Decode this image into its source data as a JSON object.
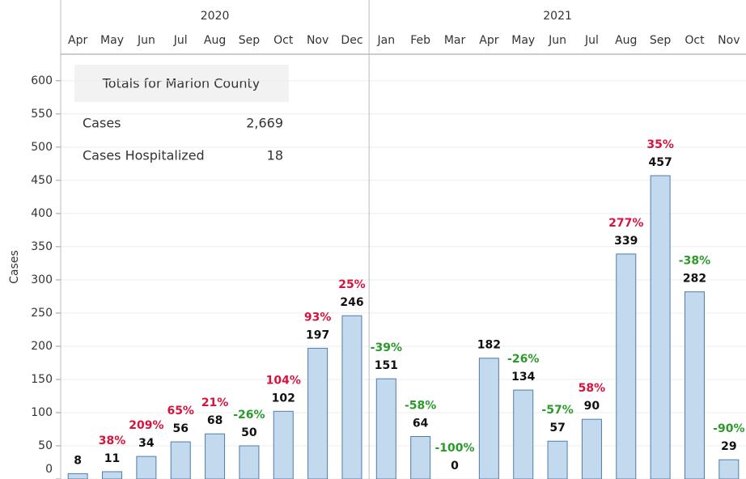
{
  "chart_data": {
    "type": "bar",
    "y_label": "Cases",
    "ylim": [
      0,
      640
    ],
    "yticks": [
      0,
      50,
      100,
      150,
      200,
      250,
      300,
      350,
      400,
      450,
      500,
      550,
      600
    ],
    "grid": true,
    "bar_color": "#c3d9ee",
    "bar_edge": "#4f7cac",
    "increase_color": "#d6133d",
    "decrease_color": "#2a9a2a",
    "groups": [
      {
        "year": "2020",
        "months": [
          "Apr",
          "May",
          "Jun",
          "Jul",
          "Aug",
          "Sep",
          "Oct",
          "Nov",
          "Dec"
        ],
        "values": [
          8,
          11,
          34,
          56,
          68,
          50,
          102,
          197,
          246
        ],
        "changes": [
          null,
          "38%",
          "209%",
          "65%",
          "21%",
          "-26%",
          "104%",
          "93%",
          "25%"
        ]
      },
      {
        "year": "2021",
        "months": [
          "Jan",
          "Feb",
          "Mar",
          "Apr",
          "May",
          "Jun",
          "Jul",
          "Aug",
          "Sep",
          "Oct",
          "Nov"
        ],
        "values": [
          151,
          64,
          0,
          182,
          134,
          57,
          90,
          339,
          457,
          282,
          29
        ],
        "changes": [
          "-39%",
          "-58%",
          "-100%",
          null,
          "-26%",
          "-57%",
          "58%",
          "277%",
          "35%",
          "-38%",
          "-90%"
        ]
      }
    ],
    "totals": {
      "title": "Totals for Marion County",
      "rows": [
        {
          "label": "Cases",
          "value": "2,669"
        },
        {
          "label": "Cases Hospitalized",
          "value": "18"
        }
      ]
    }
  }
}
